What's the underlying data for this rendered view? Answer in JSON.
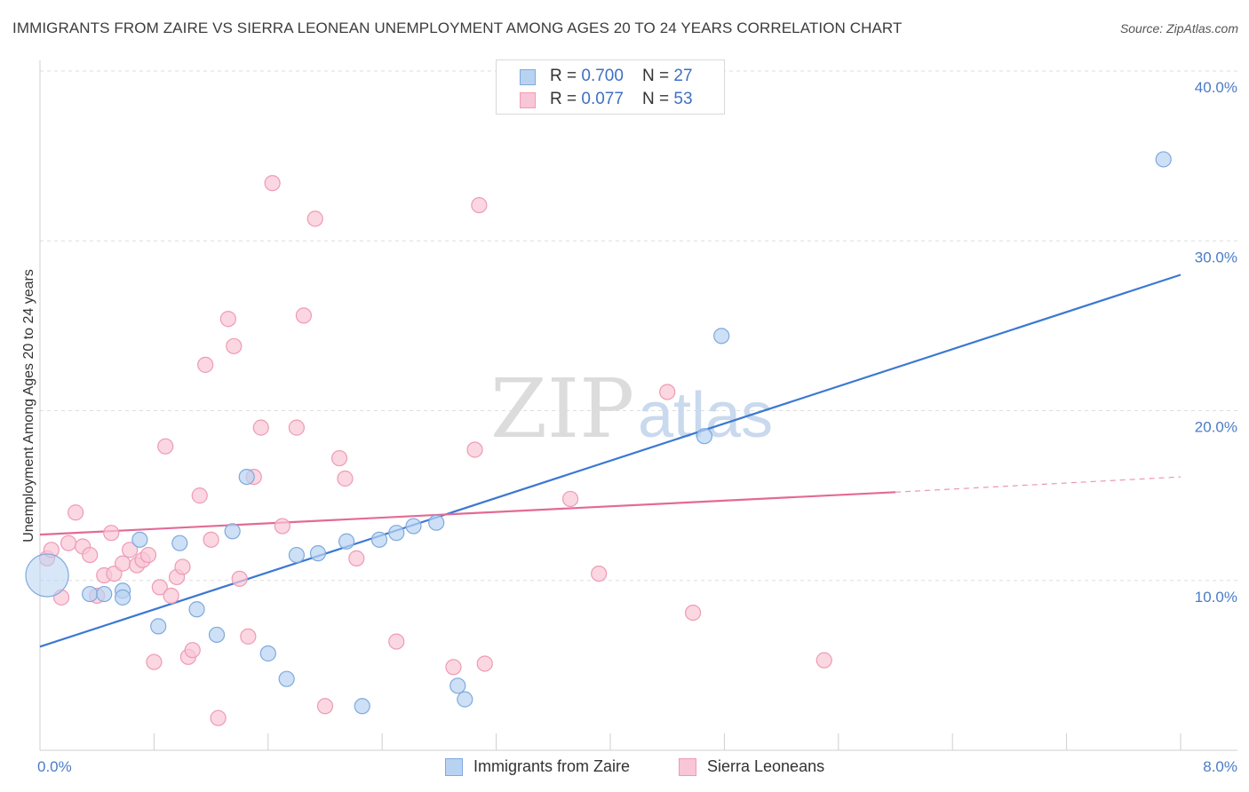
{
  "title": "IMMIGRANTS FROM ZAIRE VS SIERRA LEONEAN UNEMPLOYMENT AMONG AGES 20 TO 24 YEARS CORRELATION CHART",
  "source": "Source: ZipAtlas.com",
  "watermark": {
    "zip": "ZIP",
    "atlas": "atlas"
  },
  "legend": {
    "rows": [
      {
        "r_label": "R = ",
        "r_value": "0.700",
        "n_label": "N = ",
        "n_value": "27"
      },
      {
        "r_label": "R = ",
        "r_value": "0.077",
        "n_label": "N = ",
        "n_value": "53"
      }
    ]
  },
  "colors": {
    "zaire_fill": "#b8d3f2",
    "zaire_stroke": "#7fa9dc",
    "zaire_line": "#3b78d2",
    "sierra_fill": "#f9c6d6",
    "sierra_stroke": "#ee9ab6",
    "sierra_line": "#e36a96"
  },
  "chart_data": {
    "type": "scatter",
    "xlabel": "",
    "ylabel": "Unemployment Among Ages 20 to 24 years",
    "xlim": [
      0,
      8
    ],
    "ylim": [
      0,
      40
    ],
    "x_tick_labels": [
      "0.0%",
      "8.0%"
    ],
    "y_ticks": [
      10,
      20,
      30,
      40
    ],
    "y_tick_labels": [
      "10.0%",
      "20.0%",
      "30.0%",
      "40.0%"
    ],
    "grid": true,
    "series": [
      {
        "name": "Immigrants from Zaire",
        "r": 0.7,
        "n": 27,
        "trend": {
          "x": [
            0,
            8
          ],
          "y": [
            6.1,
            28.0
          ]
        },
        "points": [
          {
            "x": 0.05,
            "y": 10.3,
            "size": "large"
          },
          {
            "x": 0.35,
            "y": 9.2
          },
          {
            "x": 0.45,
            "y": 9.2
          },
          {
            "x": 0.58,
            "y": 9.4
          },
          {
            "x": 0.58,
            "y": 9.0
          },
          {
            "x": 0.7,
            "y": 12.4
          },
          {
            "x": 0.83,
            "y": 7.3
          },
          {
            "x": 0.98,
            "y": 12.2
          },
          {
            "x": 1.1,
            "y": 8.3
          },
          {
            "x": 1.24,
            "y": 6.8
          },
          {
            "x": 1.35,
            "y": 12.9
          },
          {
            "x": 1.45,
            "y": 16.1
          },
          {
            "x": 1.6,
            "y": 5.7
          },
          {
            "x": 1.73,
            "y": 4.2
          },
          {
            "x": 1.8,
            "y": 11.5
          },
          {
            "x": 1.95,
            "y": 11.6
          },
          {
            "x": 2.15,
            "y": 12.3
          },
          {
            "x": 2.26,
            "y": 2.6
          },
          {
            "x": 2.38,
            "y": 12.4
          },
          {
            "x": 2.5,
            "y": 12.8
          },
          {
            "x": 2.62,
            "y": 13.2
          },
          {
            "x": 2.78,
            "y": 13.4
          },
          {
            "x": 2.93,
            "y": 3.8
          },
          {
            "x": 2.98,
            "y": 3.0
          },
          {
            "x": 4.66,
            "y": 18.5
          },
          {
            "x": 4.78,
            "y": 24.4
          },
          {
            "x": 7.88,
            "y": 34.8
          }
        ]
      },
      {
        "name": "Sierra Leoneans",
        "r": 0.077,
        "n": 53,
        "trend": {
          "x": [
            0,
            6.0
          ],
          "y": [
            12.7,
            15.2
          ],
          "dashed_to": {
            "x": 8,
            "y": 16.1
          }
        },
        "points": [
          {
            "x": 0.05,
            "y": 11.3
          },
          {
            "x": 0.08,
            "y": 11.8
          },
          {
            "x": 0.15,
            "y": 9.0
          },
          {
            "x": 0.2,
            "y": 12.2
          },
          {
            "x": 0.25,
            "y": 14.0
          },
          {
            "x": 0.3,
            "y": 12.0
          },
          {
            "x": 0.35,
            "y": 11.5
          },
          {
            "x": 0.4,
            "y": 9.1
          },
          {
            "x": 0.45,
            "y": 10.3
          },
          {
            "x": 0.5,
            "y": 12.8
          },
          {
            "x": 0.52,
            "y": 10.4
          },
          {
            "x": 0.58,
            "y": 11.0
          },
          {
            "x": 0.63,
            "y": 11.8
          },
          {
            "x": 0.68,
            "y": 10.9
          },
          {
            "x": 0.72,
            "y": 11.2
          },
          {
            "x": 0.76,
            "y": 11.5
          },
          {
            "x": 0.8,
            "y": 5.2
          },
          {
            "x": 0.84,
            "y": 9.6
          },
          {
            "x": 0.88,
            "y": 17.9
          },
          {
            "x": 0.92,
            "y": 9.1
          },
          {
            "x": 0.96,
            "y": 10.2
          },
          {
            "x": 1.0,
            "y": 10.8
          },
          {
            "x": 1.04,
            "y": 5.5
          },
          {
            "x": 1.07,
            "y": 5.9
          },
          {
            "x": 1.12,
            "y": 15.0
          },
          {
            "x": 1.16,
            "y": 22.7
          },
          {
            "x": 1.2,
            "y": 12.4
          },
          {
            "x": 1.25,
            "y": 1.9
          },
          {
            "x": 1.32,
            "y": 25.4
          },
          {
            "x": 1.36,
            "y": 23.8
          },
          {
            "x": 1.4,
            "y": 10.1
          },
          {
            "x": 1.46,
            "y": 6.7
          },
          {
            "x": 1.5,
            "y": 16.1
          },
          {
            "x": 1.55,
            "y": 19.0
          },
          {
            "x": 1.63,
            "y": 33.4
          },
          {
            "x": 1.7,
            "y": 13.2
          },
          {
            "x": 1.8,
            "y": 19.0
          },
          {
            "x": 1.85,
            "y": 25.6
          },
          {
            "x": 1.93,
            "y": 31.3
          },
          {
            "x": 2.0,
            "y": 2.6
          },
          {
            "x": 2.1,
            "y": 17.2
          },
          {
            "x": 2.14,
            "y": 16.0
          },
          {
            "x": 2.22,
            "y": 11.3
          },
          {
            "x": 2.5,
            "y": 6.4
          },
          {
            "x": 2.9,
            "y": 4.9
          },
          {
            "x": 3.05,
            "y": 17.7
          },
          {
            "x": 3.08,
            "y": 32.1
          },
          {
            "x": 3.12,
            "y": 5.1
          },
          {
            "x": 3.72,
            "y": 14.8
          },
          {
            "x": 3.92,
            "y": 10.4
          },
          {
            "x": 4.4,
            "y": 21.1
          },
          {
            "x": 4.58,
            "y": 8.1
          },
          {
            "x": 5.5,
            "y": 5.3
          }
        ]
      }
    ]
  }
}
